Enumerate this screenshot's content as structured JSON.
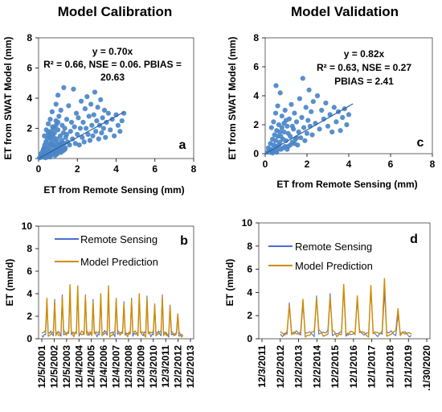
{
  "chart_data": [
    {
      "id": "a",
      "type": "scatter",
      "title": "Model Calibration",
      "panel_label": "a",
      "xlabel": "ET from Remote Sensing (mm)",
      "ylabel": "ET from SWAT Model (mm)",
      "xlim": [
        0,
        8
      ],
      "ylim": [
        0,
        8
      ],
      "xticks": [
        0,
        2,
        4,
        6,
        8
      ],
      "yticks": [
        0,
        2,
        4,
        6,
        8
      ],
      "annotation": [
        "y = 0.70x",
        "R² = 0.66, NSE = 0.06. PBIAS =",
        "20.63"
      ],
      "trendline": {
        "slope": 0.7,
        "x_range": [
          0,
          4.4
        ]
      },
      "marker_color": "#4a86c8",
      "points": [
        [
          0.05,
          0.05
        ],
        [
          0.1,
          0.2
        ],
        [
          0.12,
          0.08
        ],
        [
          0.15,
          0.35
        ],
        [
          0.2,
          0.1
        ],
        [
          0.22,
          0.5
        ],
        [
          0.25,
          0.25
        ],
        [
          0.28,
          0.7
        ],
        [
          0.3,
          0.15
        ],
        [
          0.32,
          0.9
        ],
        [
          0.35,
          0.4
        ],
        [
          0.38,
          1.1
        ],
        [
          0.4,
          0.2
        ],
        [
          0.42,
          0.6
        ],
        [
          0.45,
          1.3
        ],
        [
          0.48,
          0.3
        ],
        [
          0.5,
          0.8
        ],
        [
          0.52,
          1.5
        ],
        [
          0.55,
          0.45
        ],
        [
          0.58,
          1.0
        ],
        [
          0.6,
          0.1
        ],
        [
          0.62,
          1.8
        ],
        [
          0.65,
          0.6
        ],
        [
          0.68,
          1.2
        ],
        [
          0.7,
          0.3
        ],
        [
          0.72,
          2.1
        ],
        [
          0.75,
          0.9
        ],
        [
          0.78,
          1.4
        ],
        [
          0.8,
          0.5
        ],
        [
          0.82,
          1.7
        ],
        [
          0.85,
          0.2
        ],
        [
          0.88,
          1.1
        ],
        [
          0.9,
          2.5
        ],
        [
          0.92,
          0.7
        ],
        [
          0.95,
          1.3
        ],
        [
          0.98,
          0.4
        ],
        [
          1.0,
          1.9
        ],
        [
          1.02,
          0.9
        ],
        [
          1.05,
          2.8
        ],
        [
          1.08,
          1.0
        ],
        [
          1.1,
          0.6
        ],
        [
          1.12,
          1.5
        ],
        [
          1.15,
          3.2
        ],
        [
          1.18,
          0.8
        ],
        [
          1.2,
          1.2
        ],
        [
          1.22,
          2.2
        ],
        [
          1.25,
          0.5
        ],
        [
          1.28,
          1.7
        ],
        [
          1.3,
          4.7
        ],
        [
          1.32,
          1.0
        ],
        [
          1.35,
          2.0
        ],
        [
          1.38,
          0.7
        ],
        [
          1.4,
          1.4
        ],
        [
          1.45,
          2.6
        ],
        [
          1.5,
          1.1
        ],
        [
          1.55,
          3.5
        ],
        [
          1.6,
          0.9
        ],
        [
          1.65,
          1.8
        ],
        [
          1.7,
          2.4
        ],
        [
          1.75,
          1.3
        ],
        [
          1.8,
          4.6
        ],
        [
          1.85,
          2.1
        ],
        [
          1.9,
          1.0
        ],
        [
          1.95,
          3.0
        ],
        [
          2.0,
          1.6
        ],
        [
          2.05,
          2.7
        ],
        [
          2.1,
          0.9
        ],
        [
          2.15,
          2.0
        ],
        [
          2.2,
          3.8
        ],
        [
          2.25,
          1.4
        ],
        [
          2.3,
          2.4
        ],
        [
          2.35,
          1.1
        ],
        [
          2.4,
          3.3
        ],
        [
          2.45,
          2.0
        ],
        [
          2.5,
          4.1
        ],
        [
          2.55,
          1.6
        ],
        [
          2.6,
          2.8
        ],
        [
          2.65,
          1.2
        ],
        [
          2.7,
          3.6
        ],
        [
          2.75,
          2.2
        ],
        [
          2.8,
          1.5
        ],
        [
          2.85,
          2.9
        ],
        [
          2.9,
          4.4
        ],
        [
          2.95,
          1.8
        ],
        [
          3.0,
          2.5
        ],
        [
          3.05,
          3.4
        ],
        [
          3.1,
          1.3
        ],
        [
          3.15,
          2.2
        ],
        [
          3.2,
          3.9
        ],
        [
          3.25,
          1.7
        ],
        [
          3.3,
          2.7
        ],
        [
          3.35,
          2.0
        ],
        [
          3.4,
          3.2
        ],
        [
          3.45,
          1.4
        ],
        [
          3.5,
          2.4
        ],
        [
          3.6,
          3.0
        ],
        [
          3.7,
          1.9
        ],
        [
          3.8,
          2.6
        ],
        [
          3.9,
          1.5
        ],
        [
          4.0,
          2.9
        ],
        [
          4.1,
          2.2
        ],
        [
          4.2,
          1.8
        ],
        [
          4.3,
          2.5
        ],
        [
          4.4,
          3.0
        ],
        [
          0.6,
          2.6
        ],
        [
          0.7,
          3.1
        ],
        [
          0.5,
          2.3
        ],
        [
          0.9,
          3.6
        ],
        [
          1.0,
          4.2
        ],
        [
          0.4,
          1.9
        ],
        [
          0.3,
          1.5
        ],
        [
          0.65,
          0.9
        ],
        [
          0.75,
          0.4
        ],
        [
          0.85,
          0.8
        ],
        [
          0.95,
          0.3
        ],
        [
          1.05,
          0.5
        ],
        [
          1.15,
          0.4
        ],
        [
          0.55,
          0.2
        ],
        [
          0.45,
          0.1
        ],
        [
          0.35,
          0.05
        ],
        [
          0.25,
          0.6
        ],
        [
          0.15,
          0.15
        ],
        [
          1.25,
          1.0
        ],
        [
          1.35,
          0.6
        ],
        [
          1.45,
          1.6
        ],
        [
          0.6,
          1.4
        ],
        [
          0.7,
          1.6
        ],
        [
          0.8,
          2.0
        ],
        [
          0.9,
          2.2
        ],
        [
          1.0,
          2.4
        ],
        [
          0.5,
          1.7
        ]
      ]
    },
    {
      "id": "c",
      "type": "scatter",
      "title": "Model Validation",
      "panel_label": "c",
      "xlabel": "ET from Remote Sensing (mm)",
      "ylabel": "ET from SWAT Model (mm)",
      "xlim": [
        0,
        8
      ],
      "ylim": [
        0,
        8
      ],
      "xticks": [
        0,
        2,
        4,
        6,
        8
      ],
      "yticks": [
        0,
        2,
        4,
        6,
        8
      ],
      "annotation": [
        "y = 0.82x",
        "R² = 0.63, NSE = 0.27",
        "PBIAS = 2.41"
      ],
      "trendline": {
        "slope": 0.82,
        "x_range": [
          0,
          4.2
        ]
      },
      "marker_color": "#4a86c8",
      "points": [
        [
          0.1,
          0.1
        ],
        [
          0.15,
          0.4
        ],
        [
          0.2,
          0.2
        ],
        [
          0.25,
          0.7
        ],
        [
          0.3,
          0.3
        ],
        [
          0.35,
          1.0
        ],
        [
          0.4,
          0.15
        ],
        [
          0.45,
          1.3
        ],
        [
          0.5,
          0.5
        ],
        [
          0.52,
          4.7
        ],
        [
          0.55,
          1.6
        ],
        [
          0.6,
          0.3
        ],
        [
          0.65,
          2.0
        ],
        [
          0.7,
          0.8
        ],
        [
          0.72,
          4.2
        ],
        [
          0.75,
          1.2
        ],
        [
          0.8,
          2.6
        ],
        [
          0.85,
          0.4
        ],
        [
          0.9,
          1.5
        ],
        [
          0.95,
          3.0
        ],
        [
          1.0,
          0.9
        ],
        [
          1.05,
          1.9
        ],
        [
          1.1,
          0.5
        ],
        [
          1.15,
          2.4
        ],
        [
          1.2,
          1.2
        ],
        [
          1.25,
          3.4
        ],
        [
          1.3,
          0.8
        ],
        [
          1.35,
          1.7
        ],
        [
          1.4,
          2.8
        ],
        [
          1.45,
          1.0
        ],
        [
          1.5,
          2.2
        ],
        [
          1.55,
          0.6
        ],
        [
          1.6,
          1.5
        ],
        [
          1.65,
          3.8
        ],
        [
          1.7,
          1.1
        ],
        [
          1.75,
          2.5
        ],
        [
          1.8,
          5.2
        ],
        [
          1.85,
          1.8
        ],
        [
          1.9,
          0.9
        ],
        [
          1.95,
          3.2
        ],
        [
          2.0,
          1.4
        ],
        [
          2.05,
          2.3
        ],
        [
          2.1,
          4.4
        ],
        [
          2.15,
          1.9
        ],
        [
          2.2,
          2.9
        ],
        [
          2.25,
          1.3
        ],
        [
          2.3,
          3.6
        ],
        [
          2.4,
          2.1
        ],
        [
          2.5,
          4.0
        ],
        [
          2.6,
          1.7
        ],
        [
          2.7,
          3.0
        ],
        [
          2.8,
          2.4
        ],
        [
          2.9,
          3.5
        ],
        [
          3.0,
          1.9
        ],
        [
          3.1,
          2.7
        ],
        [
          3.2,
          1.5
        ],
        [
          3.3,
          3.2
        ],
        [
          3.4,
          2.2
        ],
        [
          3.5,
          2.9
        ],
        [
          3.6,
          1.6
        ],
        [
          3.7,
          2.5
        ],
        [
          3.8,
          3.1
        ],
        [
          3.9,
          2.0
        ],
        [
          4.0,
          2.7
        ],
        [
          0.4,
          2.2
        ],
        [
          0.5,
          2.8
        ],
        [
          0.6,
          3.3
        ],
        [
          0.3,
          1.8
        ],
        [
          0.45,
          0.2
        ],
        [
          0.55,
          0.1
        ],
        [
          0.65,
          0.6
        ],
        [
          0.75,
          0.3
        ],
        [
          0.85,
          1.0
        ],
        [
          0.95,
          0.5
        ],
        [
          1.05,
          0.3
        ],
        [
          0.35,
          0.05
        ],
        [
          0.25,
          0.1
        ],
        [
          0.8,
          1.8
        ],
        [
          0.9,
          2.1
        ],
        [
          1.0,
          2.3
        ],
        [
          0.7,
          1.5
        ],
        [
          0.6,
          1.2
        ],
        [
          1.1,
          1.4
        ],
        [
          1.2,
          0.6
        ],
        [
          1.3,
          1.9
        ],
        [
          1.4,
          0.7
        ],
        [
          1.5,
          1.1
        ],
        [
          0.5,
          0.9
        ],
        [
          0.4,
          0.6
        ]
      ]
    },
    {
      "id": "b",
      "type": "line",
      "panel_label": "b",
      "ylabel": "ET (mm/d)",
      "ylim": [
        0,
        10
      ],
      "yticks": [
        0,
        2,
        4,
        6,
        8,
        10
      ],
      "xticks": [
        "12/5/2001",
        "12/5/2002",
        "12/5/2003",
        "12/4/2004",
        "12/4/2005",
        "12/4/2006",
        "12/4/2007",
        "12/3/2008",
        "12/3/2009",
        "12/3/2010",
        "12/3/2011",
        "12/2/2012",
        "12/2/2013"
      ],
      "x_start": "12/5/2001",
      "series": [
        {
          "name": "Remote Sensing",
          "color": "#4a6fd4",
          "peaks": [
            0.3,
            0.4,
            3.2,
            0.5,
            0.4,
            3.5,
            0.5,
            0.5,
            3.9,
            0.4,
            0.5,
            4.4,
            0.6,
            0.5,
            4.6,
            0.5,
            0.4,
            3.9,
            0.5,
            0.5,
            3.5,
            0.5,
            0.4,
            3.8,
            0.5,
            0.5,
            4.3,
            0.5,
            0.4,
            3.6,
            0.5,
            0.5,
            3.3,
            0.5,
            0.4,
            3.6,
            0.5,
            0.5,
            3.7,
            0.4,
            0.6,
            3.8,
            0.5,
            0.4,
            3.1,
            0.5,
            0.4,
            3.9,
            0.5,
            0.3,
            3.0,
            0.4,
            0.3,
            2.0,
            0.3,
            0.3
          ]
        },
        {
          "name": "Model Prediction",
          "color": "#d08a00",
          "peaks": [
            0.5,
            0.6,
            3.6,
            0.3,
            0.5,
            3.3,
            0.6,
            0.3,
            3.7,
            0.6,
            0.5,
            4.8,
            0.4,
            0.6,
            4.7,
            0.4,
            0.6,
            3.8,
            0.3,
            0.6,
            3.3,
            0.6,
            0.5,
            4.0,
            0.4,
            0.6,
            4.7,
            0.3,
            0.6,
            3.5,
            0.6,
            0.5,
            3.1,
            0.4,
            0.6,
            3.4,
            0.6,
            0.4,
            4.0,
            0.6,
            0.3,
            3.6,
            0.6,
            0.5,
            3.0,
            0.4,
            0.6,
            3.7,
            0.6,
            0.3,
            2.9,
            0.5,
            0.4,
            2.2,
            0.4,
            0.3
          ]
        }
      ]
    },
    {
      "id": "d",
      "type": "line",
      "panel_label": "d",
      "ylabel": "ET (mm/d)",
      "ylim": [
        0,
        10
      ],
      "yticks": [
        0,
        2,
        4,
        6,
        8,
        10
      ],
      "xticks": [
        "12/3/2011",
        "12/2/2012",
        "12/2/2013",
        "12/2/2014",
        "12/2/2015",
        "12/1/2016",
        "12/1/2017",
        "12/1/2018",
        "12/1/2019",
        ".1/30/2020"
      ],
      "x_start": "12/2/2012",
      "series": [
        {
          "name": "Remote Sensing",
          "color": "#4a6fd4",
          "peaks": [
            0.4,
            0.5,
            3.1,
            0.4,
            0.5,
            3.0,
            0.5,
            0.4,
            3.7,
            0.5,
            0.5,
            3.9,
            0.4,
            0.5,
            4.3,
            0.5,
            0.4,
            3.3,
            0.5,
            0.5,
            4.4,
            0.4,
            0.5,
            4.0,
            0.5,
            0.4,
            2.1,
            0.5,
            0.4,
            0.3
          ]
        },
        {
          "name": "Model Prediction",
          "color": "#d08a00",
          "peaks": [
            0.6,
            0.3,
            2.9,
            0.6,
            0.4,
            3.4,
            0.3,
            0.6,
            3.5,
            0.6,
            0.3,
            3.6,
            0.6,
            0.4,
            4.7,
            0.3,
            0.6,
            3.7,
            0.6,
            0.3,
            4.6,
            0.6,
            0.4,
            5.2,
            0.3,
            0.6,
            2.6,
            0.6,
            0.5,
            0.4
          ]
        }
      ]
    }
  ]
}
